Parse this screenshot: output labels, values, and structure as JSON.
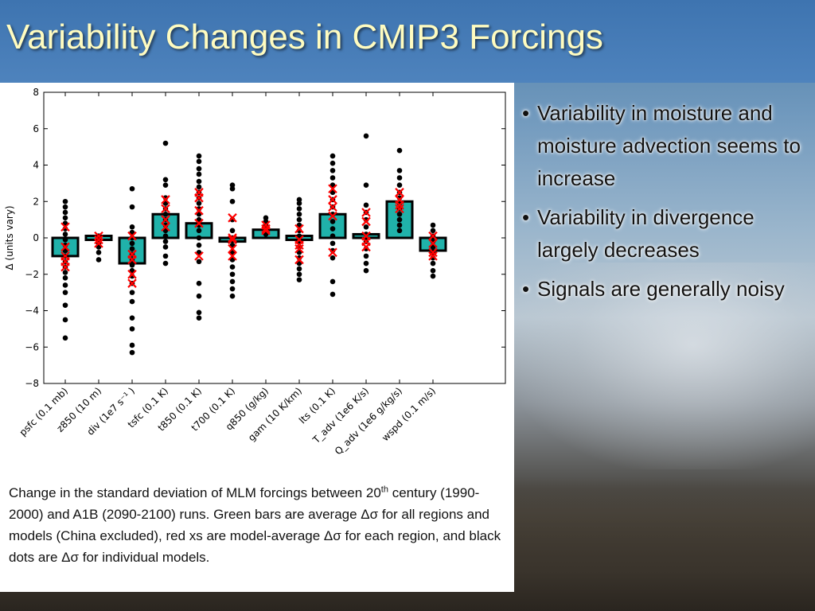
{
  "slide": {
    "title": "Variability Changes in CMIP3 Forcings",
    "bullets": [
      "Variability in moisture and moisture advection seems to increase",
      "Variability in divergence largely decreases",
      "Signals are generally noisy"
    ],
    "caption_part1": "Change in the standard deviation of MLM forcings between 20",
    "caption_sup": "th",
    "caption_part2": " century (1990-2000) and A1B (2090-2100) runs. Green bars are average Δσ for all regions and models (China excluded), red xs are model-average Δσ for each region, and black dots are Δσ for individual models.",
    "bullet_glyph": "•"
  },
  "colors": {
    "title_bar": "#4a7fba",
    "title_text": "#fffcc0",
    "bar_fill": "#20b2aa",
    "bar_edge": "#000000",
    "cross": "#ff0000",
    "dot": "#000000"
  },
  "chart_data": {
    "type": "bar",
    "ylabel": "Δ (units vary)",
    "ylim": [
      -8,
      8
    ],
    "yticks": [
      -8,
      -6,
      -4,
      -2,
      0,
      2,
      4,
      6,
      8
    ],
    "ytick_labels": [
      "−8",
      "−6",
      "−4",
      "−2",
      "0",
      "2",
      "4",
      "6",
      "8"
    ],
    "categories": [
      "psfc (0.1 mb)",
      "z850 (10 m)",
      "div (1e7 s⁻¹ )",
      "tsfc (0.1 K)",
      "t850 (0.1 K)",
      "t700 (0.1 K)",
      "q850 (g/kg)",
      "gam (10 K/km)",
      "lts (0.1 K)",
      "T_adv (1e6 K/s)",
      "Q_adv (1e6 g/kg/s)",
      "wspd (0.1 m/s)"
    ],
    "series": [
      {
        "values": [
          -1.0,
          0.0,
          -1.4,
          1.3,
          0.8,
          -0.2,
          0.45,
          0.0,
          1.3,
          0.2,
          2.0,
          -0.7
        ]
      }
    ],
    "region_model_averages": [
      [
        0.6,
        -0.5,
        -1.0,
        -1.3,
        -1.6
      ],
      [
        0.1,
        -0.1,
        -0.3
      ],
      [
        0.1,
        -0.9,
        -1.2,
        -2.0,
        -2.5
      ],
      [
        2.1,
        1.6,
        1.0,
        0.6
      ],
      [
        2.5,
        2.2,
        1.5,
        0.8,
        -1.0
      ],
      [
        1.1,
        0.0,
        -0.1,
        -0.6,
        -1.0
      ],
      [
        0.7,
        0.5,
        0.4
      ],
      [
        0.5,
        -0.1,
        -0.4,
        -0.6,
        -1.2
      ],
      [
        2.7,
        2.1,
        1.7,
        1.2,
        -0.8
      ],
      [
        1.4,
        0.9,
        0.1,
        -0.2,
        -0.5
      ],
      [
        2.5,
        2.1,
        1.8,
        1.6
      ],
      [
        0.1,
        -0.3,
        -0.8,
        -1.0
      ]
    ],
    "individual_models": [
      [
        2.0,
        1.7,
        1.4,
        1.1,
        0.8,
        0.5,
        0.2,
        -0.1,
        -0.4,
        -0.7,
        -1.0,
        -1.3,
        -1.6,
        -1.9,
        -2.2,
        -2.6,
        -3.0,
        -3.7,
        -4.5,
        -5.5
      ],
      [
        0.1,
        -0.1,
        -0.3,
        -0.5,
        -0.8,
        -1.2
      ],
      [
        2.7,
        1.7,
        0.6,
        0.3,
        0.0,
        -0.3,
        -0.6,
        -0.9,
        -1.2,
        -1.5,
        -1.8,
        -2.1,
        -2.5,
        -3.0,
        -3.5,
        -4.4,
        -5.0,
        -5.9,
        -6.3
      ],
      [
        5.2,
        3.2,
        2.9,
        2.2,
        1.9,
        1.6,
        1.3,
        1.0,
        0.7,
        0.4,
        0.1,
        -0.2,
        -0.5,
        -1.0,
        -1.4
      ],
      [
        4.5,
        4.2,
        3.8,
        3.5,
        3.1,
        2.8,
        2.5,
        2.2,
        1.9,
        1.6,
        1.3,
        1.0,
        0.7,
        0.4,
        0.0,
        -0.4,
        -0.8,
        -1.3,
        -2.5,
        -3.2,
        -4.1,
        -4.4
      ],
      [
        2.9,
        2.7,
        2.0,
        1.0,
        0.4,
        0.0,
        -0.4,
        -0.8,
        -1.2,
        -1.6,
        -2.0,
        -2.4,
        -2.8,
        -3.2
      ],
      [
        1.1,
        0.9,
        0.7,
        0.5,
        0.3,
        0.2
      ],
      [
        2.1,
        1.9,
        1.6,
        1.3,
        1.0,
        0.7,
        0.4,
        0.1,
        -0.2,
        -0.5,
        -0.8,
        -1.1,
        -1.4,
        -1.7,
        -2.0,
        -2.3
      ],
      [
        4.5,
        4.1,
        3.7,
        3.3,
        2.9,
        2.5,
        2.1,
        1.7,
        1.3,
        0.9,
        0.5,
        0.1,
        -0.3,
        -0.7,
        -1.1,
        -2.4,
        -3.1
      ],
      [
        5.6,
        2.9,
        1.8,
        1.4,
        1.0,
        0.6,
        0.2,
        -0.2,
        -0.6,
        -1.0,
        -1.4,
        -1.8
      ],
      [
        4.8,
        3.7,
        3.3,
        2.9,
        2.5,
        2.2,
        1.9,
        1.6,
        1.3,
        1.0,
        0.7,
        0.4
      ],
      [
        0.7,
        0.4,
        0.1,
        -0.2,
        -0.5,
        -0.8,
        -1.1,
        -1.4,
        -1.8,
        -2.1
      ]
    ],
    "grid": false,
    "legend": "none"
  }
}
